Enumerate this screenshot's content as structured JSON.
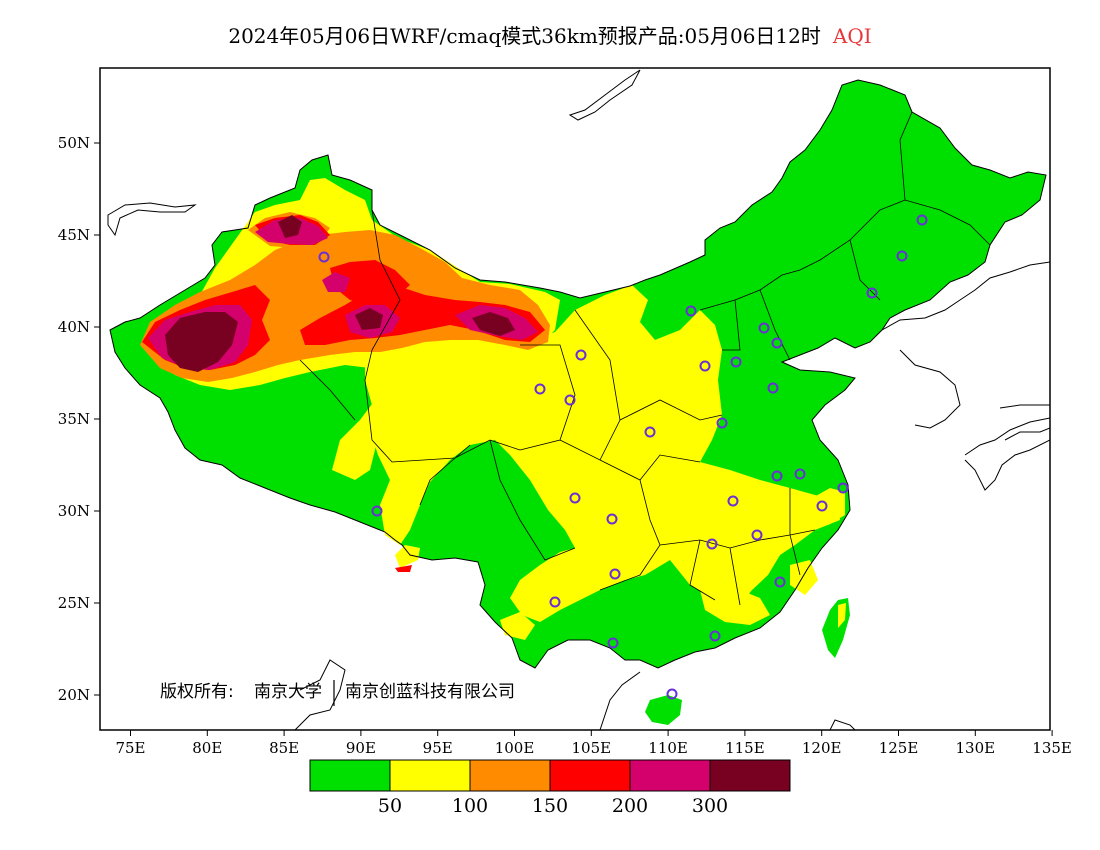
{
  "title": {
    "main": "2024年05月06日WRF/cmaq模式36km预报产品:05月06日12时",
    "product": "AQI",
    "product_color": "#e8363a"
  },
  "copyright": {
    "prefix": "版权所有:",
    "org1": "南京大学",
    "org2": "南京创蓝科技有限公司"
  },
  "axes": {
    "lon_ticks": [
      "75E",
      "80E",
      "85E",
      "90E",
      "95E",
      "100E",
      "105E",
      "110E",
      "115E",
      "120E",
      "125E",
      "130E",
      "135E"
    ],
    "lat_ticks": [
      "20N",
      "25N",
      "30N",
      "35N",
      "40N",
      "45N",
      "50N"
    ]
  },
  "legend": {
    "colors": [
      "#00e000",
      "#ffff00",
      "#ff8c00",
      "#ff0000",
      "#d4006c",
      "#780020"
    ],
    "labels": [
      "50",
      "100",
      "150",
      "200",
      "300"
    ]
  },
  "colors": {
    "good": "#00e000",
    "moderate": "#ffff00",
    "usg": "#ff8c00",
    "unhealthy": "#ff0000",
    "very_unhealthy": "#d4006c",
    "hazardous": "#780020",
    "station_marker": "#6a2fd6"
  }
}
